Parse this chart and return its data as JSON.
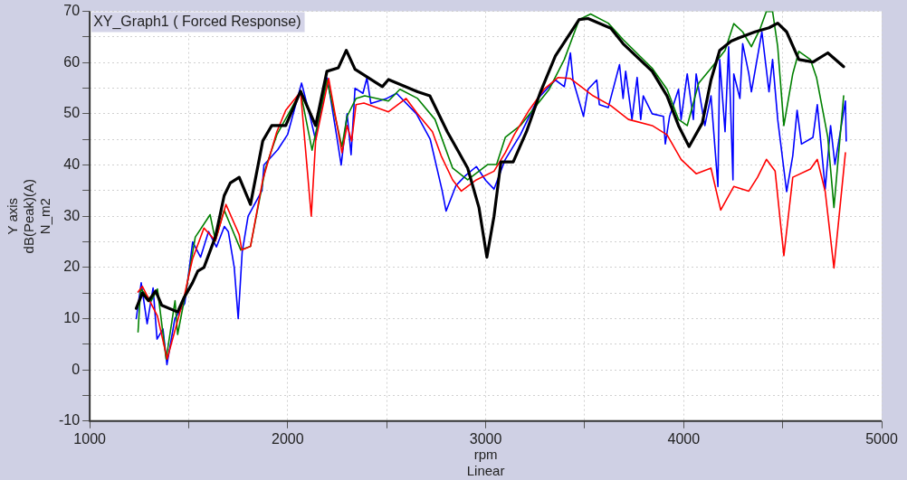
{
  "chart_data": {
    "type": "line",
    "title": "XY_Graph1 ( Forced Response)",
    "xlabel": "rpm\nLinear",
    "ylabel": "Y axis\ndB(Peak)(A)\nN_m2",
    "xlim": [
      1000,
      5000
    ],
    "xticks": [
      1000,
      {
        "value": 1500,
        "label": null
      },
      2000,
      {
        "value": 2500,
        "label": null
      },
      3000,
      {
        "value": 3500,
        "label": null
      },
      4000,
      {
        "value": 4500,
        "label": null
      },
      5000
    ],
    "ylim": [
      -10,
      70
    ],
    "yticks": [
      -10,
      {
        "value": -5,
        "label": null
      },
      0,
      {
        "value": 5,
        "label": null
      },
      10,
      {
        "value": 15,
        "label": null
      },
      20,
      {
        "value": 25,
        "label": null
      },
      30,
      {
        "value": 35,
        "label": null
      },
      40,
      {
        "value": 45,
        "label": null
      },
      50,
      {
        "value": 55,
        "label": null
      },
      60,
      {
        "value": 65,
        "label": null
      },
      70
    ],
    "grid": true,
    "legend": false,
    "marker": "none",
    "line_style": "solid",
    "series": [
      {
        "color": "#0000ff",
        "x": [
          1235,
          1260,
          1290,
          1320,
          1340,
          1370,
          1390,
          1430,
          1480,
          1520,
          1560,
          1600,
          1640,
          1680,
          1700,
          1730,
          1750,
          1770,
          1800,
          1870,
          1880,
          1950,
          2000,
          2070,
          2110,
          2140,
          2200,
          2250,
          2270,
          2300,
          2320,
          2340,
          2380,
          2400,
          2420,
          2500,
          2550,
          2650,
          2720,
          2780,
          2800,
          2850,
          2900,
          2953,
          3000,
          3042,
          3099,
          3175,
          3264,
          3352,
          3397,
          3428,
          3441,
          3494,
          3517,
          3561,
          3574,
          3619,
          3676,
          3694,
          3707,
          3739,
          3765,
          3783,
          3796,
          3841,
          3898,
          3907,
          3929,
          3974,
          3987,
          4018,
          4049,
          4063,
          4107,
          4138,
          4173,
          4182,
          4209,
          4227,
          4249,
          4253,
          4284,
          4298,
          4329,
          4342,
          4395,
          4431,
          4449,
          4475,
          4520,
          4551,
          4573,
          4595,
          4653,
          4675,
          4715,
          4742,
          4764,
          4817,
          4821
        ],
        "values": [
          10,
          17,
          9,
          16,
          6,
          8,
          1,
          10,
          13,
          25,
          22,
          27,
          24,
          28,
          27,
          20,
          10,
          23,
          30,
          35,
          40,
          43,
          46,
          56,
          50,
          45,
          57,
          45,
          40,
          50,
          42,
          55,
          54,
          57,
          52,
          53,
          54,
          50,
          45,
          35,
          31,
          36,
          38,
          39.7,
          37,
          35.3,
          41.1,
          45.9,
          53,
          56.6,
          55.3,
          61.9,
          56.6,
          49.5,
          54.8,
          56.6,
          51.8,
          51.2,
          59.6,
          53,
          58.3,
          48.9,
          57.1,
          48.9,
          53.5,
          50,
          49.5,
          44.1,
          49.5,
          54.8,
          48.9,
          57.8,
          48.9,
          57.8,
          47.7,
          53.5,
          35.8,
          60.6,
          46.5,
          63.1,
          37.1,
          57.8,
          53,
          63.7,
          57.8,
          54.3,
          66,
          54.3,
          60.6,
          48.9,
          34.8,
          41.8,
          50.7,
          44.1,
          45.4,
          51.8,
          35.3,
          47.7,
          40.1,
          52.5,
          44.7
        ]
      },
      {
        "color": "#008000",
        "x": [
          1244,
          1257,
          1311,
          1342,
          1386,
          1431,
          1444,
          1488,
          1533,
          1608,
          1635,
          1679,
          1763,
          1812,
          1888,
          1945,
          2065,
          2123,
          2198,
          2274,
          2300,
          2345,
          2389,
          2509,
          2567,
          2656,
          2744,
          2833,
          2909,
          3011,
          3055,
          3099,
          3175,
          3321,
          3397,
          3472,
          3530,
          3619,
          3694,
          3841,
          3916,
          3974,
          4018,
          4076,
          4138,
          4209,
          4253,
          4298,
          4342,
          4387,
          4418,
          4449,
          4475,
          4506,
          4551,
          4582,
          4640,
          4671,
          4728,
          4759,
          4808
        ],
        "values": [
          7.4,
          15.8,
          13.5,
          15.8,
          2.1,
          13.5,
          6.9,
          15.8,
          25.9,
          30.3,
          25.2,
          31.2,
          23.4,
          24.1,
          39.4,
          45.9,
          54.3,
          42.9,
          56.6,
          43.6,
          49.5,
          53,
          53.5,
          52.5,
          54.8,
          53,
          48.9,
          39.4,
          37.1,
          40.1,
          40.1,
          45.4,
          47.7,
          54.8,
          60.6,
          68.4,
          69.5,
          67.7,
          64.5,
          58.9,
          54.8,
          48.9,
          47.7,
          56,
          58.9,
          62.4,
          67.6,
          66,
          63.1,
          66.7,
          70,
          70,
          63.1,
          47.7,
          57.8,
          62.2,
          60.6,
          57.1,
          45.4,
          31.7,
          53.5
        ]
      },
      {
        "color": "#ff0000",
        "x": [
          1244,
          1266,
          1342,
          1391,
          1475,
          1519,
          1577,
          1635,
          1688,
          1755,
          1768,
          1812,
          1874,
          1945,
          1990,
          2065,
          2119,
          2141,
          2207,
          2274,
          2300,
          2323,
          2345,
          2385,
          2509,
          2598,
          2656,
          2731,
          2775,
          2833,
          2877,
          2953,
          3042,
          3099,
          3144,
          3219,
          3295,
          3366,
          3428,
          3543,
          3632,
          3721,
          3841,
          3916,
          3987,
          4063,
          4138,
          4187,
          4253,
          4329,
          4373,
          4418,
          4462,
          4506,
          4551,
          4640,
          4675,
          4715,
          4759,
          4817
        ],
        "values": [
          15.2,
          16.3,
          10.5,
          2.1,
          14,
          21.6,
          27.7,
          25.2,
          32.3,
          26.4,
          23.4,
          24.1,
          37.1,
          46.5,
          50.7,
          54.3,
          30,
          44.7,
          56.9,
          42.4,
          47.7,
          44.7,
          51.8,
          52.1,
          50.4,
          53,
          50,
          46.5,
          41.8,
          37.1,
          34.9,
          37.1,
          38.8,
          42.4,
          45.9,
          50.7,
          54.8,
          57.1,
          56.9,
          53.5,
          51.6,
          48.9,
          47.7,
          45.9,
          41.1,
          38.3,
          39.4,
          31.2,
          35.8,
          34.9,
          37.6,
          41.1,
          38.8,
          22.3,
          37.6,
          39.2,
          41.1,
          34.8,
          19.9,
          42.4
        ]
      },
      {
        "color": "#000000",
        "x": [
          1235,
          1266,
          1297,
          1333,
          1364,
          1444,
          1475,
          1519,
          1546,
          1577,
          1635,
          1679,
          1710,
          1755,
          1812,
          1874,
          1919,
          1990,
          2065,
          2141,
          2198,
          2256,
          2296,
          2340,
          2478,
          2509,
          2656,
          2718,
          2806,
          2909,
          2966,
          3006,
          3042,
          3077,
          3139,
          3206,
          3277,
          3352,
          3472,
          3517,
          3632,
          3694,
          3841,
          3916,
          3974,
          4027,
          4094,
          4138,
          4182,
          4240,
          4284,
          4360,
          4431,
          4475,
          4520,
          4582,
          4653,
          4728,
          4808
        ],
        "values": [
          12,
          15,
          13.5,
          15.4,
          12.6,
          11.3,
          14,
          17,
          19.3,
          20,
          26,
          34,
          36.5,
          37.6,
          32.3,
          44.7,
          47.7,
          47.7,
          54.4,
          47.7,
          58.3,
          59,
          62.4,
          58.7,
          55.3,
          56.7,
          54.3,
          53.5,
          46.5,
          39.4,
          31.7,
          22,
          30,
          40.6,
          40.6,
          46.5,
          54.3,
          61.3,
          68.4,
          68.6,
          66.7,
          63.7,
          58.3,
          53.5,
          47.7,
          43.6,
          48.2,
          56.6,
          62.4,
          64.2,
          64.9,
          66,
          66.8,
          67.7,
          66,
          60.6,
          60.1,
          61.9,
          59.2
        ]
      }
    ]
  }
}
